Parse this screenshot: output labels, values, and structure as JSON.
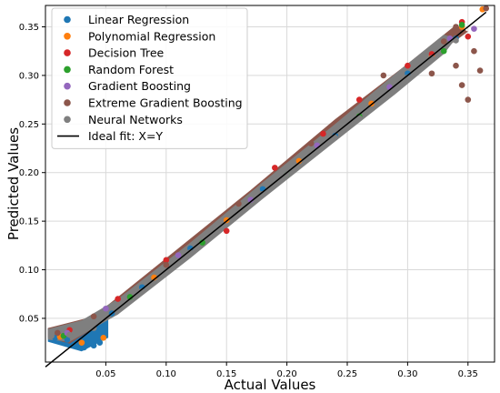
{
  "chart_data": {
    "type": "scatter",
    "title": "",
    "xlabel": "Actual Values",
    "ylabel": "Predicted Values",
    "xlim": [
      0.0,
      0.372
    ],
    "ylim": [
      0.005,
      0.372
    ],
    "xticks": [
      0.05,
      0.1,
      0.15,
      0.2,
      0.25,
      0.3,
      0.35
    ],
    "yticks": [
      0.05,
      0.1,
      0.15,
      0.2,
      0.25,
      0.3,
      0.35
    ],
    "xtick_labels": [
      "0.05",
      "0.10",
      "0.15",
      "0.20",
      "0.25",
      "0.30",
      "0.35"
    ],
    "ytick_labels": [
      "0.05",
      "0.10",
      "0.15",
      "0.20",
      "0.25",
      "0.30",
      "0.35"
    ],
    "grid": true,
    "legend_position": "top-left",
    "series": [
      {
        "name": "Linear Regression",
        "color": "#1f77b4",
        "points": [
          [
            0.008,
            0.03
          ],
          [
            0.018,
            0.028
          ],
          [
            0.025,
            0.022
          ],
          [
            0.032,
            0.02
          ],
          [
            0.04,
            0.022
          ],
          [
            0.045,
            0.025
          ],
          [
            0.055,
            0.055
          ],
          [
            0.08,
            0.082
          ],
          [
            0.12,
            0.122
          ],
          [
            0.18,
            0.183
          ],
          [
            0.24,
            0.238
          ],
          [
            0.3,
            0.302
          ],
          [
            0.34,
            0.338
          ]
        ]
      },
      {
        "name": "Polynomial Regression",
        "color": "#ff7f0e",
        "points": [
          [
            0.012,
            0.031
          ],
          [
            0.03,
            0.025
          ],
          [
            0.048,
            0.03
          ],
          [
            0.09,
            0.092
          ],
          [
            0.15,
            0.151
          ],
          [
            0.21,
            0.212
          ],
          [
            0.27,
            0.271
          ],
          [
            0.32,
            0.32
          ],
          [
            0.345,
            0.35
          ],
          [
            0.362,
            0.368
          ]
        ]
      },
      {
        "name": "Decision Tree",
        "color": "#d62728",
        "points": [
          [
            0.02,
            0.038
          ],
          [
            0.06,
            0.07
          ],
          [
            0.1,
            0.11
          ],
          [
            0.15,
            0.14
          ],
          [
            0.19,
            0.205
          ],
          [
            0.23,
            0.24
          ],
          [
            0.26,
            0.275
          ],
          [
            0.3,
            0.31
          ],
          [
            0.32,
            0.322
          ],
          [
            0.345,
            0.355
          ],
          [
            0.35,
            0.34
          ]
        ]
      },
      {
        "name": "Random Forest",
        "color": "#2ca02c",
        "points": [
          [
            0.015,
            0.032
          ],
          [
            0.07,
            0.072
          ],
          [
            0.13,
            0.128
          ],
          [
            0.2,
            0.198
          ],
          [
            0.26,
            0.258
          ],
          [
            0.33,
            0.325
          ],
          [
            0.345,
            0.352
          ]
        ]
      },
      {
        "name": "Gradient Boosting",
        "color": "#9467bd",
        "points": [
          [
            0.018,
            0.035
          ],
          [
            0.05,
            0.06
          ],
          [
            0.11,
            0.115
          ],
          [
            0.17,
            0.172
          ],
          [
            0.225,
            0.228
          ],
          [
            0.285,
            0.288
          ],
          [
            0.335,
            0.338
          ],
          [
            0.355,
            0.348
          ]
        ]
      },
      {
        "name": "Extreme Gradient Boosting",
        "color": "#8c564b",
        "points": [
          [
            0.01,
            0.035
          ],
          [
            0.04,
            0.052
          ],
          [
            0.1,
            0.105
          ],
          [
            0.16,
            0.168
          ],
          [
            0.22,
            0.23
          ],
          [
            0.28,
            0.3
          ],
          [
            0.32,
            0.302
          ],
          [
            0.33,
            0.335
          ],
          [
            0.34,
            0.31
          ],
          [
            0.345,
            0.29
          ],
          [
            0.35,
            0.275
          ],
          [
            0.355,
            0.325
          ],
          [
            0.36,
            0.305
          ],
          [
            0.365,
            0.369
          ],
          [
            0.34,
            0.35
          ]
        ]
      },
      {
        "name": "Neural Networks",
        "color": "#7f7f7f",
        "points": [
          [
            0.005,
            0.032
          ],
          [
            0.02,
            0.033
          ],
          [
            0.04,
            0.04
          ],
          [
            0.06,
            0.06
          ],
          [
            0.08,
            0.078
          ],
          [
            0.1,
            0.098
          ],
          [
            0.12,
            0.118
          ],
          [
            0.14,
            0.138
          ],
          [
            0.16,
            0.158
          ],
          [
            0.18,
            0.178
          ],
          [
            0.2,
            0.198
          ],
          [
            0.22,
            0.218
          ],
          [
            0.24,
            0.236
          ],
          [
            0.26,
            0.256
          ],
          [
            0.28,
            0.278
          ],
          [
            0.3,
            0.298
          ],
          [
            0.32,
            0.318
          ],
          [
            0.34,
            0.336
          ]
        ]
      }
    ],
    "lines": [
      {
        "name": "Ideal fit: X=Y",
        "color": "#000000",
        "x": [
          0.0,
          0.365
        ],
        "y": [
          0.0,
          0.365
        ]
      }
    ]
  }
}
